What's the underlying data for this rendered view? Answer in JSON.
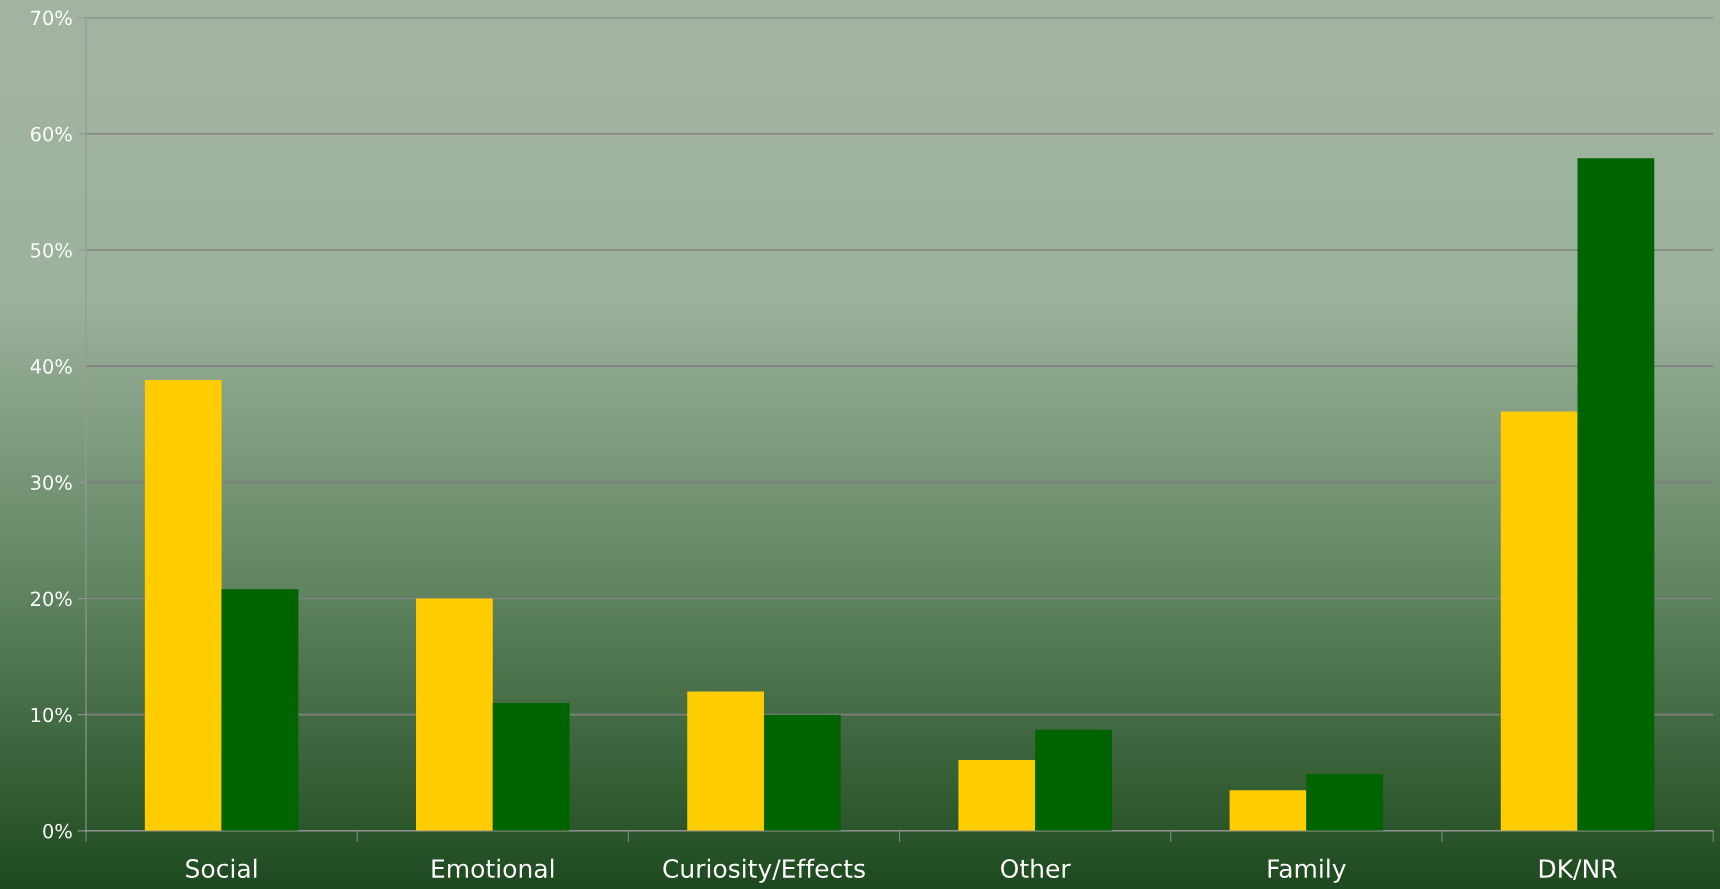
{
  "chart_data": {
    "type": "bar",
    "categories": [
      "Social",
      "Emotional",
      "Curiosity/Effects",
      "Other",
      "Family",
      "DK/NR"
    ],
    "series": [
      {
        "color": "#ffcc00",
        "values": [
          38.8,
          20,
          12,
          6.1,
          3.5,
          36.1
        ]
      },
      {
        "color": "#006400",
        "values": [
          20.8,
          11,
          10,
          8.7,
          4.9,
          57.9
        ]
      }
    ],
    "ylim": [
      0,
      70
    ],
    "yticks": [
      {
        "value": 0,
        "label": "0%"
      },
      {
        "value": 10,
        "label": "10%"
      },
      {
        "value": 20,
        "label": "20%"
      },
      {
        "value": 30,
        "label": "30%"
      },
      {
        "value": 40,
        "label": "40%"
      },
      {
        "value": 50,
        "label": "50%"
      },
      {
        "value": 60,
        "label": "60%"
      },
      {
        "value": 70,
        "label": "70%"
      }
    ],
    "grid": "y"
  }
}
